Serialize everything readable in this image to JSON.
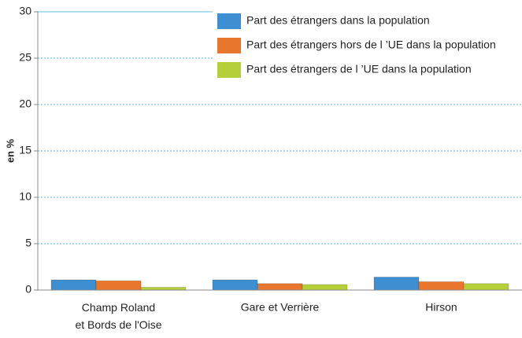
{
  "chart_data": {
    "type": "bar",
    "y_label": "en %",
    "categories": [
      "Champ Roland\net Bords de l'Oise",
      "Gare et Verrière",
      "Hirson"
    ],
    "series": [
      {
        "name": "Part des étrangers dans la population",
        "color": "#3d8fd1",
        "values": [
          1.1,
          1.1,
          1.4
        ]
      },
      {
        "name": "Part des étrangers hors de l ’UE dans la population",
        "color": "#e8762c",
        "values": [
          1.0,
          0.7,
          0.9
        ]
      },
      {
        "name": "Part des étrangers de l ’UE dans la population",
        "color": "#b5cf3a",
        "values": [
          0.3,
          0.6,
          0.7
        ]
      }
    ],
    "ylim": [
      0,
      30
    ],
    "yticks": [
      0,
      5,
      10,
      15,
      20,
      25,
      30
    ],
    "grid": true,
    "legend": "top-right"
  }
}
